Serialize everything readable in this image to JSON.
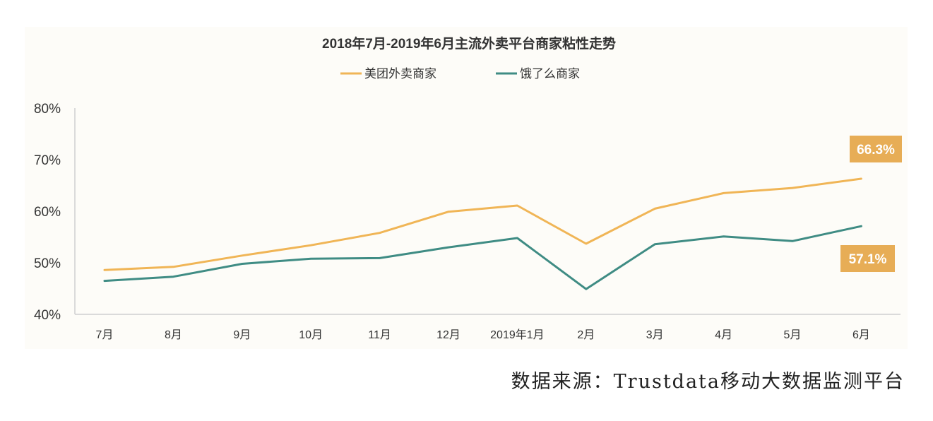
{
  "chart_data": {
    "type": "line",
    "title": "2018年7月-2019年6月主流外卖平台商家粘性走势",
    "categories": [
      "7月",
      "8月",
      "9月",
      "10月",
      "11月",
      "12月",
      "2019年1月",
      "2月",
      "3月",
      "4月",
      "5月",
      "6月"
    ],
    "y_ticks": [
      "40%",
      "50%",
      "60%",
      "70%",
      "80%"
    ],
    "ylim": [
      40,
      80
    ],
    "grid": false,
    "legend_position": "top-center",
    "series": [
      {
        "name": "美团外卖商家",
        "color": "#f0b556",
        "values": [
          48.6,
          49.2,
          51.4,
          53.4,
          55.8,
          59.9,
          61.1,
          53.7,
          60.5,
          63.5,
          64.5,
          66.3
        ],
        "end_label": "66.3%"
      },
      {
        "name": "饿了么商家",
        "color": "#3f8c84",
        "values": [
          46.5,
          47.3,
          49.8,
          50.8,
          50.9,
          53.0,
          54.8,
          44.9,
          53.6,
          55.1,
          54.2,
          57.1
        ],
        "end_label": "57.1%"
      }
    ],
    "label_box_color": "#e7ad56"
  },
  "source_text": "数据来源：Trustdata移动大数据监测平台"
}
